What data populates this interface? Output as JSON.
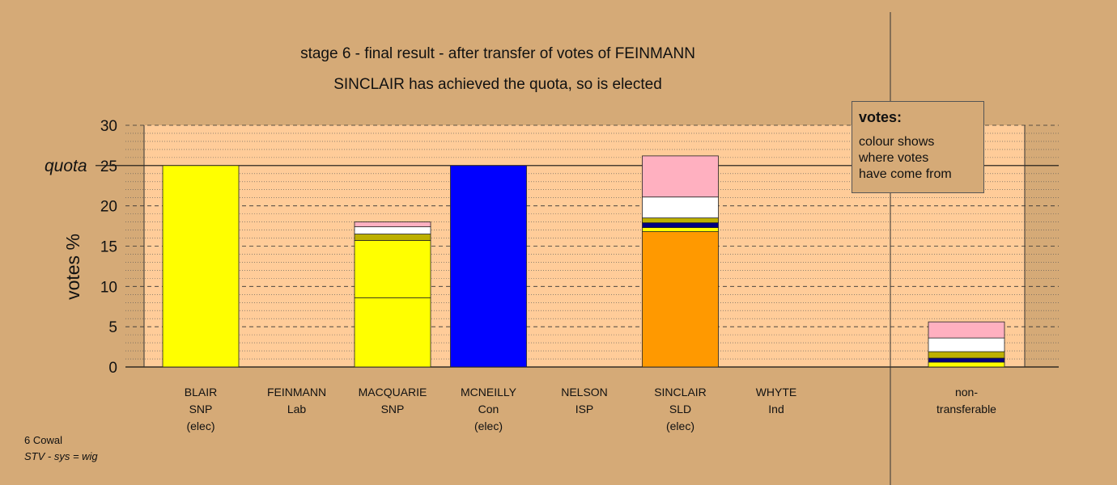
{
  "chart_data": {
    "type": "bar",
    "stacked": true,
    "title": "stage 6 - final result - after transfer of votes of FEINMANN",
    "subtitle": "SINCLAIR has achieved the quota, so is elected",
    "ylabel": "votes %",
    "ylim": [
      0,
      30
    ],
    "yticks": [
      "0",
      "5",
      "10",
      "15",
      "20",
      "25",
      "30"
    ],
    "yticks_values": [
      0,
      5,
      10,
      15,
      20,
      25,
      30
    ],
    "quota_label": "quota",
    "quota_value": 25,
    "grid": true,
    "categories": [
      {
        "name": "BLAIR",
        "party": "SNP",
        "status": "(elec)"
      },
      {
        "name": "FEINMANN",
        "party": "Lab",
        "status": ""
      },
      {
        "name": "MACQUARIE",
        "party": "SNP",
        "status": ""
      },
      {
        "name": "MCNEILLY",
        "party": "Con",
        "status": "(elec)"
      },
      {
        "name": "NELSON",
        "party": "ISP",
        "status": ""
      },
      {
        "name": "SINCLAIR",
        "party": "SLD",
        "status": "(elec)"
      },
      {
        "name": "WHYTE",
        "party": "Ind",
        "status": ""
      }
    ],
    "nontransferable_label": [
      "non-",
      "transferable"
    ],
    "bars": [
      [
        {
          "value": 25.0,
          "color": "#ffff00"
        }
      ],
      [],
      [
        {
          "value": 8.6,
          "color": "#ffff00"
        },
        {
          "value": 7.1,
          "color": "#ffff00"
        },
        {
          "value": 0.8,
          "color": "#bdb000"
        },
        {
          "value": 0.9,
          "color": "#ffffff"
        },
        {
          "value": 0.6,
          "color": "#ffb0c0"
        }
      ],
      [
        {
          "value": 25.0,
          "color": "#0000ff"
        }
      ],
      [],
      [
        {
          "value": 16.8,
          "color": "#ff9900"
        },
        {
          "value": 0.5,
          "color": "#ffff00"
        },
        {
          "value": 0.6,
          "color": "#000080"
        },
        {
          "value": 0.6,
          "color": "#bdb000"
        },
        {
          "value": 2.6,
          "color": "#ffffff"
        },
        {
          "value": 5.1,
          "color": "#ffb0c0"
        }
      ],
      []
    ],
    "nontransferable": [
      {
        "value": 0.6,
        "color": "#ffff00"
      },
      {
        "value": 0.5,
        "color": "#000080"
      },
      {
        "value": 0.8,
        "color": "#bdb000"
      },
      {
        "value": 1.7,
        "color": "#ffffff"
      },
      {
        "value": 2.0,
        "color": "#ffb0c0"
      }
    ],
    "legend": {
      "title": "votes:",
      "lines": [
        "colour shows",
        "where votes",
        "have come from"
      ]
    },
    "footer": {
      "line1": "6 Cowal",
      "line2": "STV - sys = wig"
    }
  }
}
